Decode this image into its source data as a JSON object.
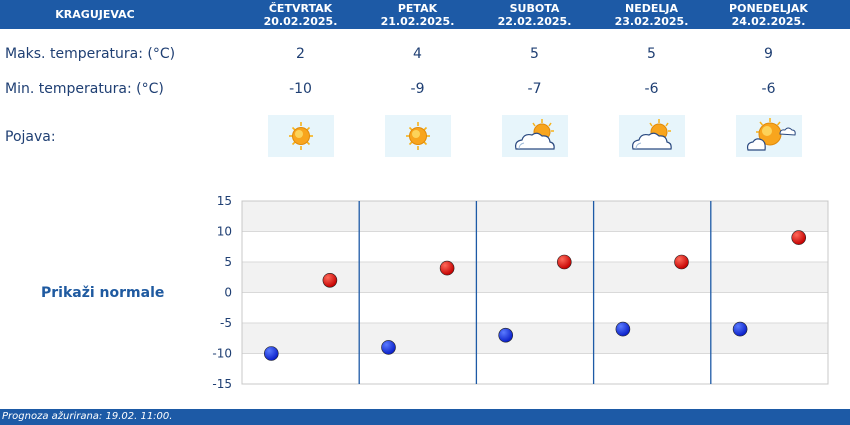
{
  "header": {
    "city": "KRAGUJEVAC",
    "days": [
      {
        "name": "ČETVRTAK",
        "date": "20.02.2025."
      },
      {
        "name": "PETAK",
        "date": "21.02.2025."
      },
      {
        "name": "SUBOTA",
        "date": "22.02.2025."
      },
      {
        "name": "NEDELJA",
        "date": "23.02.2025."
      },
      {
        "name": "PONEDELJAK",
        "date": "24.02.2025."
      }
    ]
  },
  "rows": {
    "max_label": "Maks. temperatura: (°C)",
    "min_label": "Min. temperatura: (°C)",
    "phenomenon_label": "Pojava:",
    "max_values": [
      "2",
      "4",
      "5",
      "5",
      "9"
    ],
    "min_values": [
      "-10",
      "-9",
      "-7",
      "-6",
      "-6"
    ],
    "icons": [
      "sun-icon",
      "sun-icon",
      "sun-cloud-icon",
      "sun-cloud-icon",
      "sun-cloud-icon"
    ]
  },
  "show_normals_label": "Prikaži normale",
  "chart_data": {
    "type": "scatter",
    "categories": [
      "ČETVRTAK",
      "PETAK",
      "SUBOTA",
      "NEDELJA",
      "PONEDELJAK"
    ],
    "series": [
      {
        "values": [
          2,
          4,
          5,
          5,
          9
        ],
        "color": "#c40000"
      },
      {
        "values": [
          -10,
          -9,
          -7,
          -6,
          -6
        ],
        "color": "#0a1fc8"
      }
    ],
    "ylim": [
      -15,
      15
    ],
    "yticks": [
      "15",
      "10",
      "5",
      "0",
      "-5",
      "-10",
      "-15"
    ],
    "grid": true
  },
  "footer": {
    "text": "Prognoza ažurirana:  19.02. 11:00."
  },
  "colors": {
    "header_bg": "#1d5aa6",
    "text": "#1f3f73",
    "max_dot": "#c40000",
    "min_dot": "#0a1fc8"
  }
}
